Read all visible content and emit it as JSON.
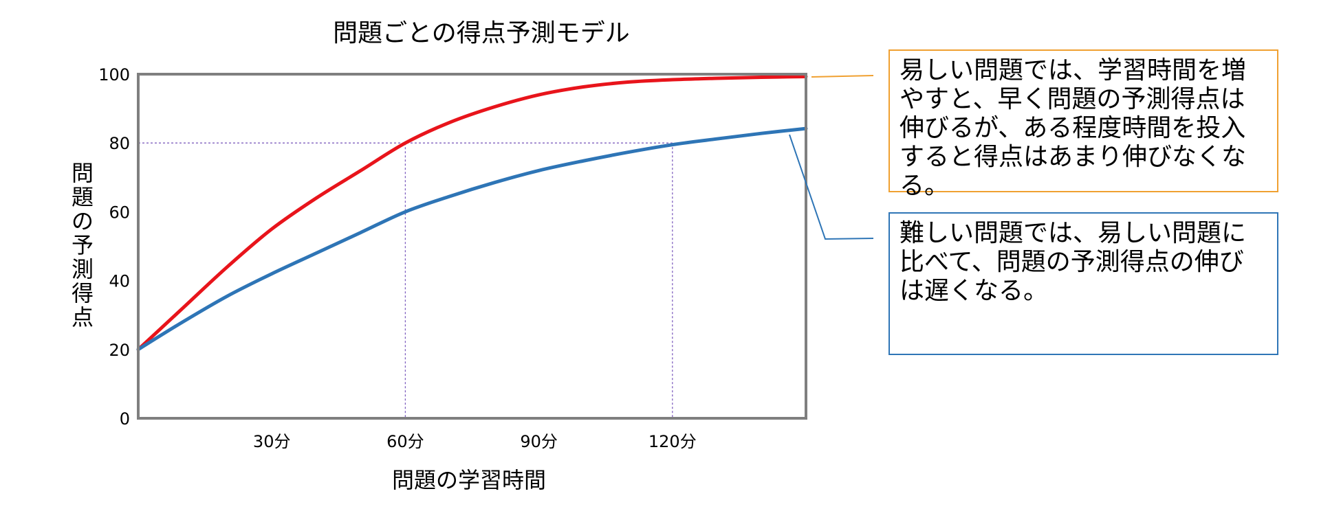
{
  "chart_data": {
    "type": "line",
    "title": "問題ごとの得点予測モデル",
    "xlabel": "問題の学習時間",
    "ylabel": "問題の予測得点",
    "xlim": [
      0,
      150
    ],
    "ylim": [
      0,
      100
    ],
    "x_ticks": [
      {
        "value": 30,
        "label": "30分"
      },
      {
        "value": 60,
        "label": "60分"
      },
      {
        "value": 90,
        "label": "90分"
      },
      {
        "value": 120,
        "label": "120分"
      }
    ],
    "y_ticks": [
      {
        "value": 0,
        "label": "0"
      },
      {
        "value": 20,
        "label": "20"
      },
      {
        "value": 40,
        "label": "40"
      },
      {
        "value": 60,
        "label": "60"
      },
      {
        "value": 80,
        "label": "80"
      },
      {
        "value": 100,
        "label": "100"
      }
    ],
    "series": [
      {
        "color": "#e8141b",
        "x": [
          0,
          10,
          20,
          30,
          40,
          50,
          60,
          70,
          80,
          90,
          100,
          110,
          120,
          130,
          140,
          150
        ],
        "y": [
          20,
          32,
          44,
          55,
          64,
          72,
          80,
          86,
          90.5,
          94,
          96.3,
          97.7,
          98.4,
          98.8,
          99.1,
          99.3
        ]
      },
      {
        "color": "#2e75b6",
        "x": [
          0,
          10,
          20,
          30,
          40,
          50,
          60,
          70,
          80,
          90,
          100,
          110,
          120,
          130,
          140,
          150
        ],
        "y": [
          20,
          28,
          35.5,
          42,
          48,
          54,
          60,
          64.5,
          68.5,
          72,
          74.8,
          77.3,
          79.5,
          81.2,
          82.8,
          84.2
        ]
      }
    ],
    "reference_lines": [
      {
        "x": 60,
        "y": 80
      },
      {
        "x": 120,
        "y": 80
      }
    ],
    "grid": false,
    "legend": "none"
  },
  "annotations": {
    "easy": {
      "text": "易しい問題では、学習時間を増やすと、早く問題の予測得点は伸びるが、ある程度時間を投入すると得点はあまり伸びなくなる。",
      "color": "#f0a030"
    },
    "hard": {
      "text": "難しい問題では、易しい問題に比べて、問題の予測得点の伸びは遅くなる。",
      "color": "#2e75b6"
    }
  },
  "colors": {
    "axes_frame": "#7f7f7f",
    "reference_line": "#7f5fbf"
  }
}
